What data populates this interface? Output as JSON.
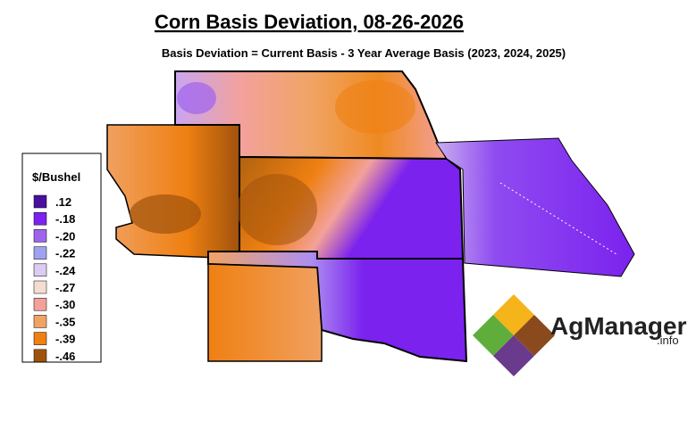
{
  "header": {
    "title": "Corn Basis Deviation, 08-26-2026",
    "subtitle": "Basis Deviation = Current Basis - 3 Year Average Basis (2023, 2024, 2025)"
  },
  "legend": {
    "title": "$/Bushel",
    "items": [
      {
        "label": ".12",
        "color": "#4a0f9e"
      },
      {
        "label": "-.18",
        "color": "#7b22ee"
      },
      {
        "label": "-.20",
        "color": "#a063ee"
      },
      {
        "label": "-.22",
        "color": "#9ea2f0"
      },
      {
        "label": "-.24",
        "color": "#dccbf2"
      },
      {
        "label": "-.27",
        "color": "#f6ddd2"
      },
      {
        "label": "-.30",
        "color": "#f3a19a"
      },
      {
        "label": "-.35",
        "color": "#f0a464"
      },
      {
        "label": "-.39",
        "color": "#ef8012"
      },
      {
        "label": "-.46",
        "color": "#a0520c"
      }
    ]
  },
  "logo": {
    "name": "AgManager",
    "suffix": ".info"
  }
}
